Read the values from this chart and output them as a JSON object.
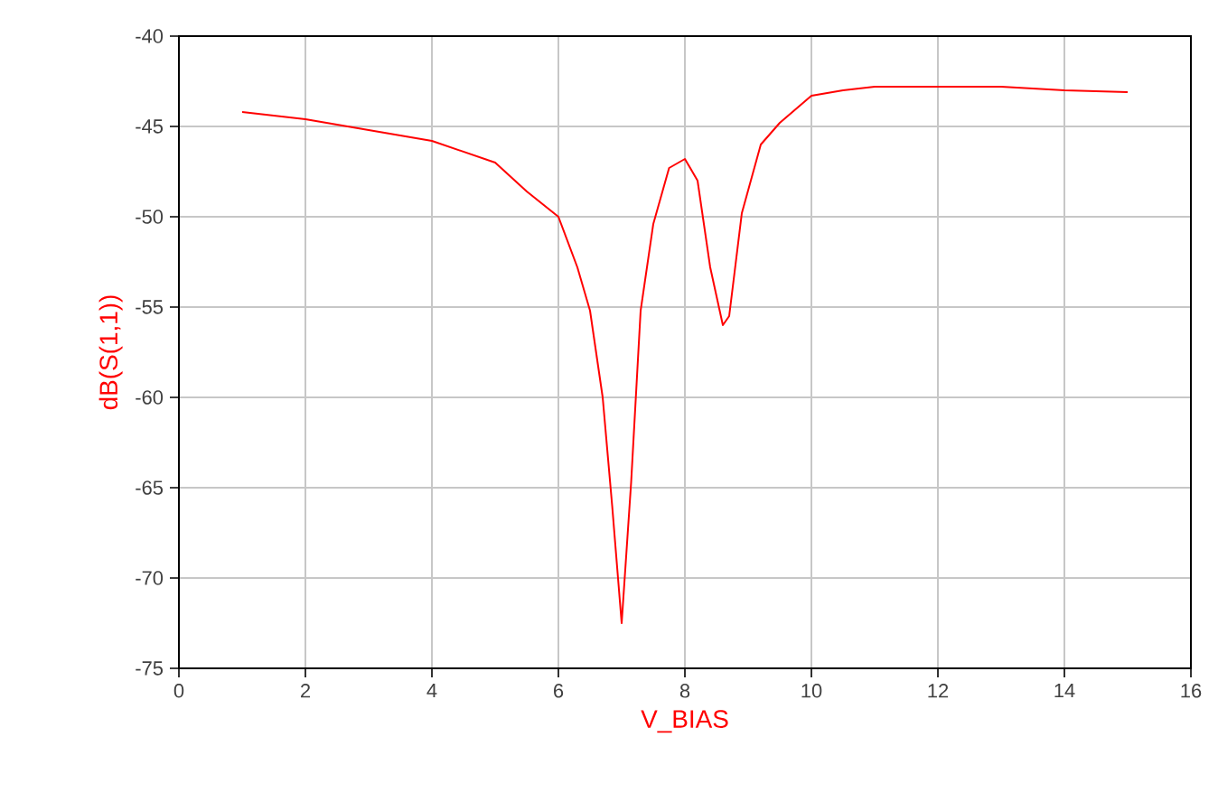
{
  "chart_data": {
    "type": "line",
    "xlabel": "V_BIAS",
    "ylabel": "dB(S(1,1))",
    "xlim": [
      0,
      16
    ],
    "ylim": [
      -75,
      -40
    ],
    "xticks": [
      0,
      2,
      4,
      6,
      8,
      10,
      12,
      14,
      16
    ],
    "yticks": [
      -75,
      -70,
      -65,
      -60,
      -55,
      -50,
      -45,
      -40
    ],
    "grid": true,
    "series": [
      {
        "color": "#ff0000",
        "x": [
          1,
          2,
          3,
          4,
          5,
          5.5,
          6,
          6.3,
          6.5,
          6.7,
          6.85,
          7.0,
          7.15,
          7.3,
          7.5,
          7.75,
          8.0,
          8.2,
          8.4,
          8.6,
          8.7,
          8.9,
          9.2,
          9.5,
          10,
          10.5,
          11,
          12,
          13,
          14,
          15
        ],
        "values": [
          -44.2,
          -44.6,
          -45.2,
          -45.8,
          -47.0,
          -48.6,
          -50.0,
          -52.8,
          -55.2,
          -60,
          -66,
          -72.5,
          -64.7,
          -55.2,
          -50.4,
          -47.3,
          -46.8,
          -48.0,
          -52.8,
          -56,
          -55.5,
          -49.8,
          -46.0,
          -44.8,
          -43.3,
          -43.0,
          -42.8,
          -42.8,
          -42.8,
          -43.0,
          -43.1
        ]
      }
    ]
  }
}
